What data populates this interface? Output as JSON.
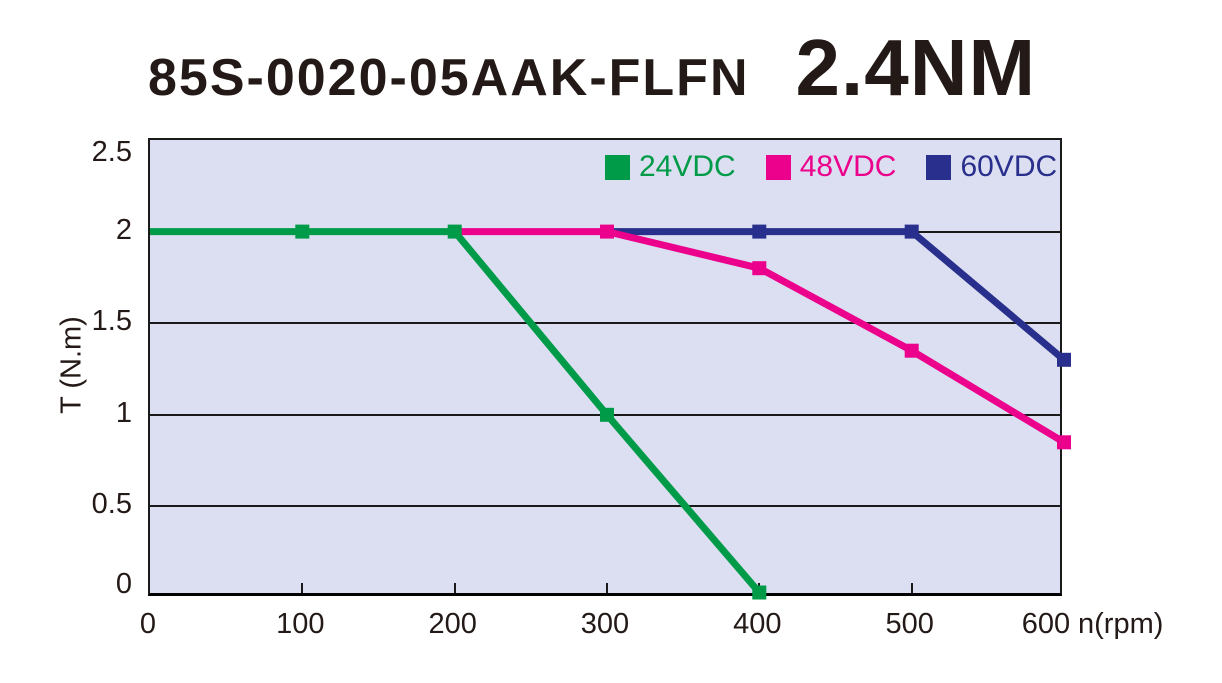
{
  "title": "85S-0020-05AAK-FLFN",
  "torque_rating": "2.4NM",
  "colors": {
    "green": "#009B48",
    "pink": "#EB018C",
    "blue": "#282F8C",
    "plot_background": "#DCDFF1",
    "gridline": "#1A1A1A",
    "text": "#231916"
  },
  "chart_data": {
    "type": "line",
    "title": "85S-0020-05AAK-FLFN 2.4NM",
    "xlabel": "n(rpm)",
    "ylabel": "T (N.m)",
    "xlim": [
      0,
      600
    ],
    "ylim": [
      0,
      2.5
    ],
    "x_ticks": [
      0,
      100,
      200,
      300,
      400,
      500,
      600
    ],
    "y_ticks": [
      0,
      0.5,
      1,
      1.5,
      2,
      2.5
    ],
    "grid": "horizontal-only",
    "legend_position": "top-right-inside",
    "marker": "square",
    "series": [
      {
        "name": "24VDC",
        "color": "#009B48",
        "points": [
          [
            0,
            2
          ],
          [
            100,
            2
          ],
          [
            200,
            2
          ],
          [
            300,
            1
          ],
          [
            400,
            0.03
          ]
        ],
        "marker_points": [
          [
            100,
            2
          ],
          [
            200,
            2
          ],
          [
            300,
            1
          ],
          [
            400,
            0.03
          ]
        ]
      },
      {
        "name": "48VDC",
        "color": "#EB018C",
        "points": [
          [
            200,
            2
          ],
          [
            300,
            2
          ],
          [
            400,
            1.8
          ],
          [
            500,
            1.35
          ],
          [
            600,
            0.85
          ]
        ],
        "marker_points": [
          [
            300,
            2
          ],
          [
            400,
            1.8
          ],
          [
            500,
            1.35
          ],
          [
            600,
            0.85
          ]
        ]
      },
      {
        "name": "60VDC",
        "color": "#282F8C",
        "points": [
          [
            300,
            2
          ],
          [
            400,
            2
          ],
          [
            500,
            2
          ],
          [
            600,
            1.3
          ]
        ],
        "marker_points": [
          [
            400,
            2
          ],
          [
            500,
            2
          ],
          [
            600,
            1.3
          ]
        ]
      }
    ]
  }
}
